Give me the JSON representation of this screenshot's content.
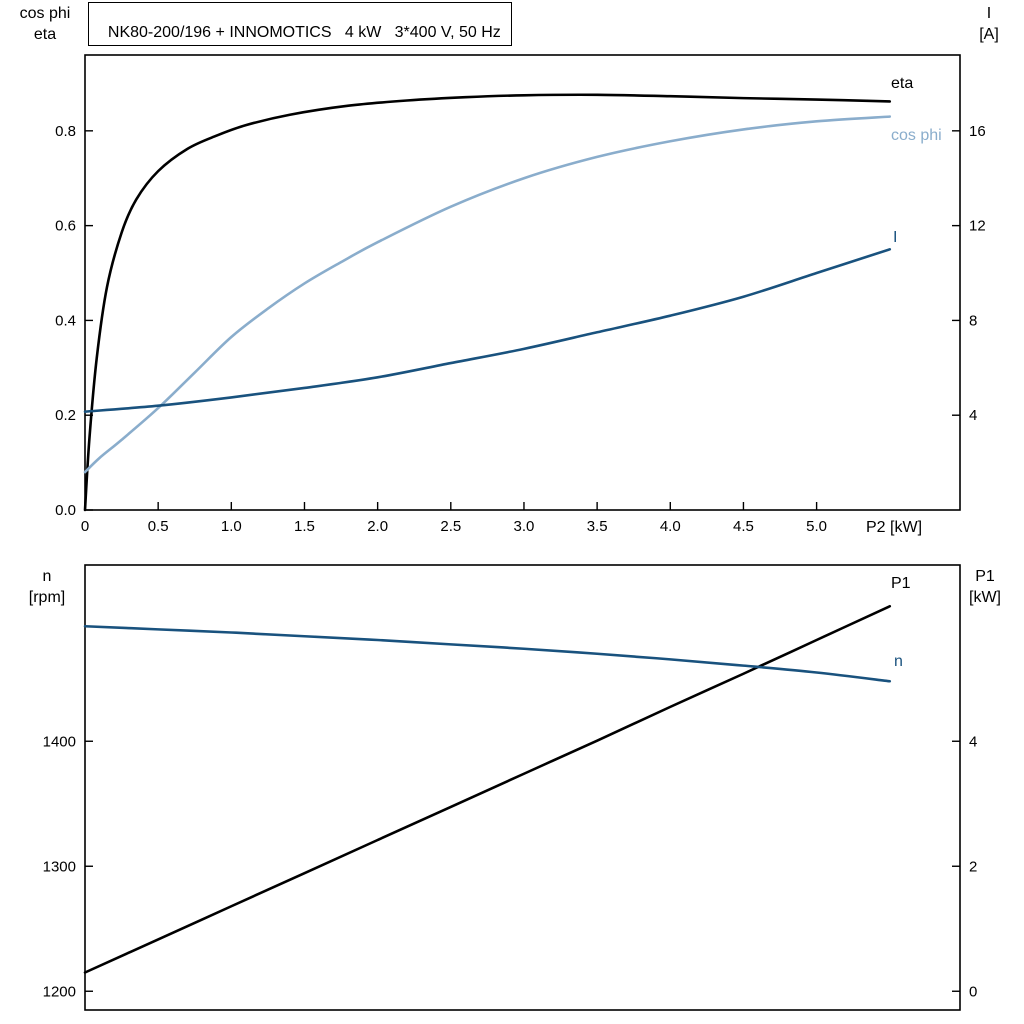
{
  "labels": {
    "top_left": [
      "cos phi",
      "eta"
    ],
    "top_right": [
      "I",
      "[A]"
    ],
    "bottom_left": [
      "n",
      "[rpm]"
    ],
    "bottom_right": [
      "P1",
      "[kW]"
    ]
  },
  "colors": {
    "black": "#000000",
    "light_blue": "#8aadcc",
    "dark_blue": "#19527e"
  },
  "chart_data": [
    {
      "type": "line",
      "title": "NK80-200/196 + INNOMOTICS   4 kW   3*400 V, 50 Hz",
      "xlabel": "P2 [kW]",
      "xlim": [
        0,
        5.98
      ],
      "xticks": [
        0,
        0.5,
        1,
        1.5,
        2,
        2.5,
        3,
        3.5,
        4,
        4.5,
        5
      ],
      "xtick_labels": [
        "0",
        "0.5",
        "1.0",
        "1.5",
        "2.0",
        "2.5",
        "3.0",
        "3.5",
        "4.0",
        "4.5",
        "5.0"
      ],
      "grid": false,
      "left_axis": {
        "label": "cos phi / eta",
        "lim": [
          0,
          0.96
        ],
        "ticks": [
          0,
          0.2,
          0.4,
          0.6,
          0.8
        ],
        "labels": [
          "0.0",
          "0.2",
          "0.4",
          "0.6",
          "0.8"
        ]
      },
      "right_axis": {
        "label": "I [A]",
        "lim": [
          0,
          19.2
        ],
        "ticks": [
          4,
          8,
          12,
          16
        ],
        "labels": [
          "4",
          "8",
          "12",
          "16"
        ]
      },
      "series": [
        {
          "id": "eta",
          "name": "eta",
          "axis": "left",
          "color": "#000000",
          "x": [
            0,
            0.03,
            0.08,
            0.15,
            0.25,
            0.35,
            0.5,
            0.7,
            0.9,
            1.1,
            1.4,
            1.8,
            2.2,
            2.6,
            3.0,
            3.5,
            4.0,
            4.5,
            5.0,
            5.5
          ],
          "y": [
            0,
            0.15,
            0.32,
            0.47,
            0.585,
            0.655,
            0.715,
            0.762,
            0.79,
            0.812,
            0.834,
            0.853,
            0.864,
            0.871,
            0.875,
            0.876,
            0.873,
            0.869,
            0.866,
            0.862
          ]
        },
        {
          "id": "cos-phi",
          "name": "cos phi",
          "axis": "left",
          "color": "#8aadcc",
          "x": [
            0,
            0.1,
            0.25,
            0.5,
            0.75,
            1.0,
            1.25,
            1.5,
            1.75,
            2.0,
            2.5,
            3.0,
            3.5,
            4.0,
            4.5,
            5.0,
            5.5
          ],
          "y": [
            0.08,
            0.11,
            0.148,
            0.215,
            0.29,
            0.365,
            0.425,
            0.478,
            0.523,
            0.565,
            0.64,
            0.7,
            0.745,
            0.778,
            0.803,
            0.82,
            0.83
          ]
        },
        {
          "id": "current",
          "name": "I",
          "axis": "right",
          "color": "#19527e",
          "x": [
            0,
            0.5,
            1.0,
            1.5,
            2.0,
            2.5,
            3.0,
            3.5,
            4.0,
            4.5,
            5.0,
            5.5
          ],
          "y": [
            4.15,
            4.4,
            4.75,
            5.15,
            5.6,
            6.2,
            6.8,
            7.5,
            8.2,
            9.0,
            10.0,
            11.0
          ]
        }
      ]
    },
    {
      "type": "line",
      "title": "",
      "xlabel": "",
      "xlim": [
        0,
        5.98
      ],
      "xticks": [],
      "xtick_labels": [],
      "grid": false,
      "left_axis": {
        "label": "n [rpm]",
        "lim": [
          1185,
          1541
        ],
        "ticks": [
          1200,
          1300,
          1400
        ],
        "labels": [
          "1200",
          "1300",
          "1400"
        ]
      },
      "right_axis": {
        "label": "P1 [kW]",
        "lim": [
          -0.3,
          6.82
        ],
        "ticks": [
          0,
          2,
          4
        ],
        "labels": [
          "0",
          "2",
          "4"
        ]
      },
      "series": [
        {
          "id": "p1",
          "name": "P1",
          "axis": "right",
          "color": "#000000",
          "x": [
            0,
            0.5,
            1,
            1.5,
            2,
            2.5,
            3,
            3.5,
            4,
            4.5,
            5,
            5.5
          ],
          "y": [
            0.3,
            0.83,
            1.36,
            1.89,
            2.42,
            2.95,
            3.48,
            4.01,
            4.55,
            5.08,
            5.62,
            6.16
          ]
        },
        {
          "id": "n",
          "name": "n",
          "axis": "left",
          "color": "#19527e",
          "x": [
            0,
            0.5,
            1,
            1.5,
            2,
            2.5,
            3,
            3.5,
            4,
            4.5,
            5,
            5.5
          ],
          "y": [
            1492,
            1489.5,
            1487,
            1484,
            1481,
            1477.5,
            1474,
            1470,
            1465.5,
            1460.5,
            1455,
            1448
          ]
        }
      ]
    }
  ]
}
